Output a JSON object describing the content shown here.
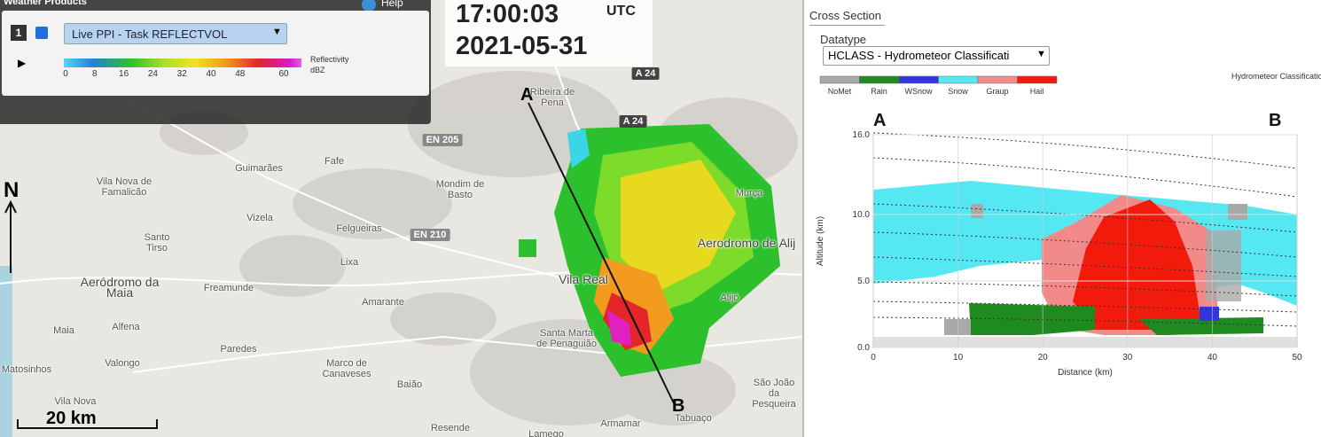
{
  "weather_products": {
    "title": "Weather Products",
    "help": "Help",
    "layer_number": "1",
    "layer": "Live PPI - Task REFLECTVOL",
    "legend_title": "Reflectivity",
    "legend_unit": "dBZ",
    "legend_ticks": [
      0,
      8,
      16,
      24,
      32,
      40,
      48,
      60
    ]
  },
  "timestamp": {
    "time": "17:00:03",
    "zone": "UTC",
    "date": "2021-05-31"
  },
  "map": {
    "north": "N",
    "scale": "20 km",
    "section_start": "A",
    "section_end": "B",
    "roads": [
      "A 24",
      "A 24",
      "EN 205",
      "EN 210"
    ],
    "places": [
      "Ribeira de Pena",
      "Guimarães",
      "Fafe",
      "Vila Nova de Famalicão",
      "Mondim de Basto",
      "Murça",
      "Vizela",
      "Felgueiras",
      "Santo Tirso",
      "Aerodromo de Alij",
      "Lixa",
      "Aeródromo da Maia",
      "Freamunde",
      "Vila Real",
      "Alijó",
      "Amarante",
      "Maia",
      "Alfena",
      "Santa Marta de Penaguião",
      "Paredes",
      "Valongo",
      "Matosinhos",
      "Marco de Canaveses",
      "Baião",
      "São João da Pesqueira",
      "Vila Nova",
      "Resende",
      "Lamego",
      "Armamar",
      "Tabuaço"
    ]
  },
  "cross_section": {
    "title": "Cross Section",
    "datatype_label": "Datatype",
    "datatype": "HCLASS - Hydrometeor Classificati",
    "legend_classes": [
      "NoMet",
      "Rain",
      "WSnow",
      "Snow",
      "Graup",
      "Hail"
    ],
    "legend_title": "Hydrometeor Classification",
    "start": "A",
    "end": "B",
    "y_label": "Altitude (km)",
    "yticks": [
      "0.0",
      "5.0",
      "10.0",
      "16.0"
    ],
    "x_label": "Distance (km)",
    "xticks": [
      0,
      10,
      20,
      30,
      40,
      50
    ]
  }
}
